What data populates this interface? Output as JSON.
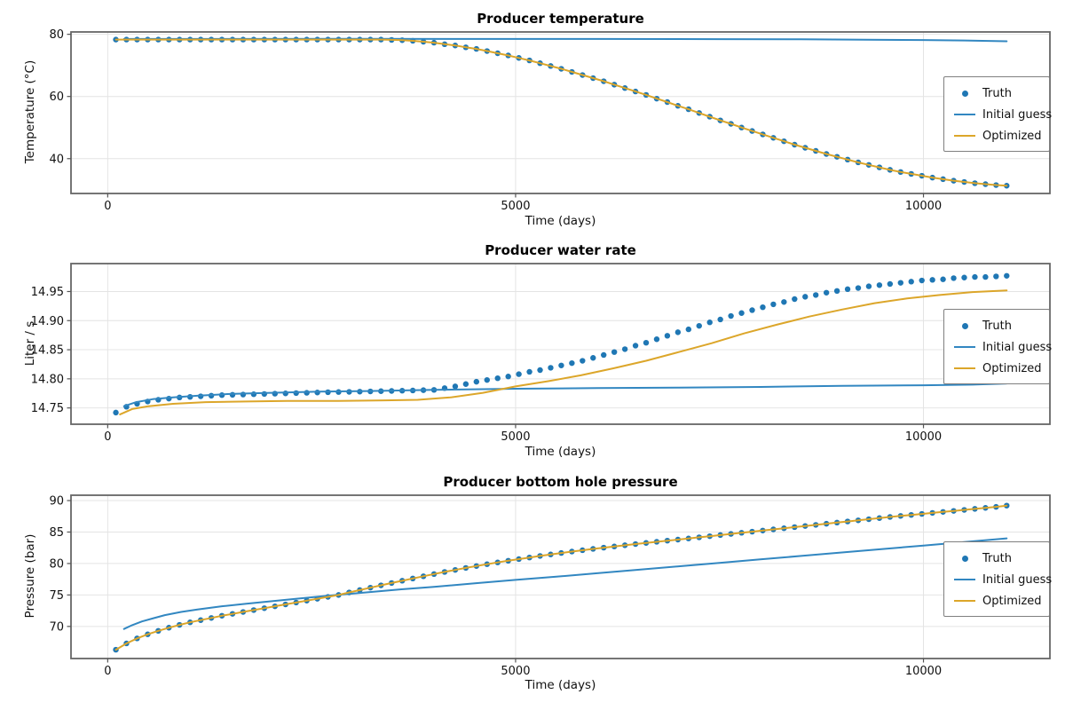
{
  "figure_background": "#ffffff",
  "style": {
    "spine_color": "#666666",
    "grid_color": "#e4e4e4",
    "tick_color": "#555555",
    "text_color": "#111111"
  },
  "chart_data": [
    {
      "type": "line",
      "title": "Producer temperature",
      "xlabel": "Time (days)",
      "ylabel": "Temperature (°C)",
      "xlim": [
        -450,
        11550
      ],
      "ylim": [
        28.8,
        80.75
      ],
      "x_ticks": [
        0,
        5000,
        10000
      ],
      "x_tick_labels": [
        "0",
        "5000",
        "10000"
      ],
      "y_ticks": [
        40,
        60,
        80
      ],
      "y_tick_labels": [
        "40",
        "60",
        "80"
      ],
      "grid": true,
      "legend_position": "center right",
      "series": [
        {
          "name": "Truth",
          "type": "dots",
          "color": "#1f77b4",
          "t0": 100,
          "dt": 130,
          "values": [
            78.3,
            78.3,
            78.3,
            78.3,
            78.3,
            78.3,
            78.3,
            78.3,
            78.3,
            78.3,
            78.3,
            78.3,
            78.3,
            78.3,
            78.3,
            78.3,
            78.3,
            78.3,
            78.3,
            78.3,
            78.3,
            78.3,
            78.3,
            78.3,
            78.3,
            78.3,
            78.2,
            78.1,
            77.9,
            77.6,
            77.3,
            76.8,
            76.4,
            75.8,
            75.3,
            74.6,
            73.9,
            73.2,
            72.4,
            71.6,
            70.7,
            69.8,
            68.9,
            67.9,
            66.9,
            65.9,
            64.9,
            63.8,
            62.7,
            61.6,
            60.5,
            59.3,
            58.2,
            57.0,
            55.9,
            54.7,
            53.5,
            52.3,
            51.2,
            50.0,
            48.9,
            47.8,
            46.7,
            45.6,
            44.5,
            43.5,
            42.5,
            41.5,
            40.6,
            39.7,
            38.8,
            38.0,
            37.2,
            36.4,
            35.7,
            35.1,
            34.5,
            33.9,
            33.4,
            32.9,
            32.5,
            32.1,
            31.8,
            31.5,
            31.3
          ]
        },
        {
          "name": "Initial guess",
          "type": "line",
          "color": "#3287c1",
          "points": [
            [
              200,
              78.5
            ],
            [
              3000,
              78.52
            ],
            [
              6000,
              78.5
            ],
            [
              7500,
              78.45
            ],
            [
              8500,
              78.38
            ],
            [
              9300,
              78.28
            ],
            [
              10000,
              78.15
            ],
            [
              10500,
              78.0
            ],
            [
              11020,
              77.75
            ]
          ]
        },
        {
          "name": "Optimized",
          "type": "line",
          "color": "#dca62a",
          "ref": "Truth"
        }
      ]
    },
    {
      "type": "line",
      "title": "Producer water rate",
      "xlabel": "Time (days)",
      "ylabel": "Liter / s",
      "xlim": [
        -450,
        11550
      ],
      "ylim": [
        14.722,
        14.998
      ],
      "x_ticks": [
        0,
        5000,
        10000
      ],
      "x_tick_labels": [
        "0",
        "5000",
        "10000"
      ],
      "y_ticks": [
        14.75,
        14.8,
        14.85,
        14.9,
        14.95
      ],
      "y_tick_labels": [
        "14.75",
        "14.80",
        "14.85",
        "14.90",
        "14.95"
      ],
      "grid": true,
      "legend_position": "center right",
      "series": [
        {
          "name": "Truth",
          "type": "dots",
          "color": "#1f77b4",
          "t0": 100,
          "dt": 130,
          "values": [
            14.742,
            14.752,
            14.757,
            14.761,
            14.764,
            14.766,
            14.768,
            14.769,
            14.77,
            14.771,
            14.772,
            14.7725,
            14.773,
            14.7735,
            14.774,
            14.7745,
            14.775,
            14.7755,
            14.776,
            14.7765,
            14.777,
            14.7773,
            14.7776,
            14.778,
            14.7784,
            14.7788,
            14.7792,
            14.7796,
            14.78,
            14.7805,
            14.781,
            14.784,
            14.787,
            14.791,
            14.795,
            14.798,
            14.801,
            14.804,
            14.808,
            14.812,
            14.815,
            14.819,
            14.823,
            14.827,
            14.831,
            14.836,
            14.841,
            14.846,
            14.851,
            14.857,
            14.862,
            14.868,
            14.874,
            14.88,
            14.885,
            14.891,
            14.897,
            14.902,
            14.908,
            14.913,
            14.918,
            14.923,
            14.928,
            14.932,
            14.937,
            14.941,
            14.944,
            14.948,
            14.951,
            14.954,
            14.956,
            14.959,
            14.961,
            14.963,
            14.965,
            14.967,
            14.969,
            14.97,
            14.971,
            14.973,
            14.974,
            14.975,
            14.975,
            14.976,
            14.977
          ]
        },
        {
          "name": "Initial guess",
          "type": "line",
          "color": "#3287c1",
          "points": [
            [
              200,
              14.753
            ],
            [
              350,
              14.76
            ],
            [
              550,
              14.765
            ],
            [
              800,
              14.768
            ],
            [
              1100,
              14.771
            ],
            [
              1500,
              14.774
            ],
            [
              2000,
              14.776
            ],
            [
              2600,
              14.778
            ],
            [
              3200,
              14.779
            ],
            [
              4000,
              14.781
            ],
            [
              5000,
              14.783
            ],
            [
              6000,
              14.784
            ],
            [
              7000,
              14.785
            ],
            [
              8000,
              14.786
            ],
            [
              9000,
              14.788
            ],
            [
              10000,
              14.789
            ],
            [
              10600,
              14.79
            ],
            [
              11020,
              14.792
            ]
          ]
        },
        {
          "name": "Optimized",
          "type": "line",
          "color": "#dca62a",
          "points": [
            [
              150,
              14.739
            ],
            [
              300,
              14.748
            ],
            [
              500,
              14.753
            ],
            [
              800,
              14.757
            ],
            [
              1200,
              14.76
            ],
            [
              1700,
              14.761
            ],
            [
              2200,
              14.762
            ],
            [
              2800,
              14.762
            ],
            [
              3400,
              14.763
            ],
            [
              3800,
              14.764
            ],
            [
              4200,
              14.768
            ],
            [
              4600,
              14.776
            ],
            [
              5000,
              14.787
            ],
            [
              5400,
              14.796
            ],
            [
              5800,
              14.806
            ],
            [
              6200,
              14.818
            ],
            [
              6600,
              14.831
            ],
            [
              7000,
              14.846
            ],
            [
              7400,
              14.861
            ],
            [
              7800,
              14.878
            ],
            [
              8200,
              14.893
            ],
            [
              8600,
              14.907
            ],
            [
              9000,
              14.919
            ],
            [
              9400,
              14.93
            ],
            [
              9800,
              14.938
            ],
            [
              10200,
              14.944
            ],
            [
              10600,
              14.949
            ],
            [
              11020,
              14.952
            ]
          ]
        }
      ]
    },
    {
      "type": "line",
      "title": "Producer bottom hole pressure",
      "xlabel": "Time (days)",
      "ylabel": "Pressure (bar)",
      "xlim": [
        -450,
        11550
      ],
      "ylim": [
        64.9,
        90.85
      ],
      "x_ticks": [
        0,
        5000,
        10000
      ],
      "x_tick_labels": [
        "0",
        "5000",
        "10000"
      ],
      "y_ticks": [
        70,
        75,
        80,
        85,
        90
      ],
      "y_tick_labels": [
        "70",
        "75",
        "80",
        "85",
        "90"
      ],
      "grid": true,
      "legend_position": "center right",
      "series": [
        {
          "name": "Truth",
          "type": "dots",
          "color": "#1f77b4",
          "t0": 100,
          "dt": 130,
          "values": [
            66.3,
            67.3,
            68.1,
            68.75,
            69.3,
            69.8,
            70.25,
            70.65,
            71.0,
            71.35,
            71.7,
            72.0,
            72.3,
            72.6,
            72.9,
            73.2,
            73.5,
            73.8,
            74.1,
            74.4,
            74.7,
            75.0,
            75.4,
            75.78,
            76.16,
            76.53,
            76.9,
            77.26,
            77.62,
            77.97,
            78.32,
            78.66,
            78.98,
            79.3,
            79.6,
            79.89,
            80.17,
            80.44,
            80.7,
            80.95,
            81.2,
            81.44,
            81.67,
            81.9,
            82.11,
            82.32,
            82.52,
            82.71,
            82.9,
            83.09,
            83.27,
            83.45,
            83.63,
            83.8,
            83.98,
            84.16,
            84.34,
            84.52,
            84.7,
            84.88,
            85.06,
            85.24,
            85.42,
            85.6,
            85.78,
            85.96,
            86.14,
            86.32,
            86.5,
            86.68,
            86.86,
            87.04,
            87.22,
            87.4,
            87.56,
            87.72,
            87.88,
            88.04,
            88.2,
            88.36,
            88.52,
            88.68,
            88.84,
            89.0,
            89.2
          ]
        },
        {
          "name": "Initial guess",
          "type": "line",
          "color": "#3287c1",
          "points": [
            [
              200,
              69.6
            ],
            [
              300,
              70.2
            ],
            [
              420,
              70.8
            ],
            [
              560,
              71.3
            ],
            [
              700,
              71.8
            ],
            [
              900,
              72.3
            ],
            [
              1100,
              72.7
            ],
            [
              1400,
              73.2
            ],
            [
              1700,
              73.6
            ],
            [
              2000,
              74.0
            ],
            [
              2400,
              74.5
            ],
            [
              2800,
              75.0
            ],
            [
              3200,
              75.45
            ],
            [
              3600,
              75.9
            ],
            [
              4000,
              76.3
            ],
            [
              4500,
              76.85
            ],
            [
              5000,
              77.4
            ],
            [
              5500,
              77.9
            ],
            [
              6000,
              78.45
            ],
            [
              6500,
              79.0
            ],
            [
              7000,
              79.55
            ],
            [
              7500,
              80.1
            ],
            [
              8000,
              80.65
            ],
            [
              8500,
              81.2
            ],
            [
              9000,
              81.75
            ],
            [
              9500,
              82.3
            ],
            [
              10000,
              82.85
            ],
            [
              10500,
              83.4
            ],
            [
              11020,
              84.0
            ]
          ]
        },
        {
          "name": "Optimized",
          "type": "line",
          "color": "#dca62a",
          "ref": "Truth"
        }
      ]
    }
  ]
}
